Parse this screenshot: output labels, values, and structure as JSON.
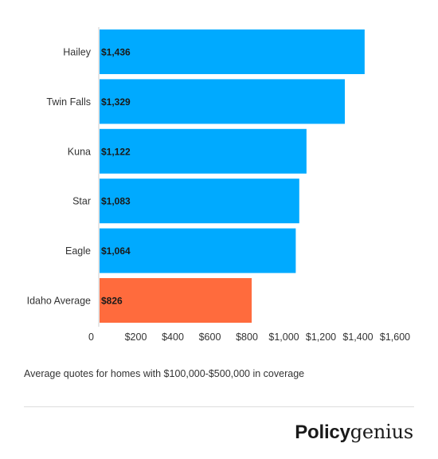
{
  "chart_data": {
    "type": "bar",
    "orientation": "horizontal",
    "categories": [
      "Hailey",
      "Twin Falls",
      "Kuna",
      "Star",
      "Eagle",
      "Idaho Average"
    ],
    "values": [
      1436,
      1329,
      1122,
      1083,
      1064,
      826
    ],
    "value_labels": [
      "$1,436",
      "$1,329",
      "$1,122",
      "$1,083",
      "$1,064",
      "$826"
    ],
    "bar_colors": [
      "#00aaff",
      "#00aaff",
      "#00aaff",
      "#00aaff",
      "#00aaff",
      "#ff6b3d"
    ],
    "x_ticks": [
      0,
      200,
      400,
      600,
      800,
      1000,
      1200,
      1400,
      1600
    ],
    "x_tick_labels": [
      "0",
      "$200",
      "$400",
      "$600",
      "$800",
      "$1,000",
      "$1,200",
      "$1,400",
      "$1,600"
    ],
    "xlim": [
      0,
      1600
    ],
    "grid": false,
    "title": "",
    "xlabel": "",
    "ylabel": ""
  },
  "caption": "Average quotes for homes with $100,000-$500,000 in coverage",
  "logo": {
    "bold": "Policy",
    "light": "genius"
  }
}
